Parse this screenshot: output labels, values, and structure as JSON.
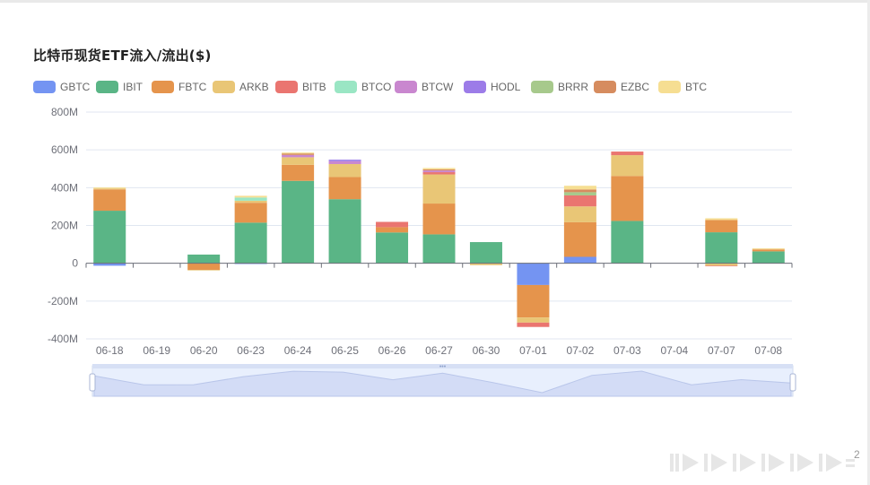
{
  "title": "比特币现货ETF流入/流出($)",
  "page_indicator": "2",
  "chart_data": {
    "type": "bar",
    "stacked": true,
    "title": "比特币现货ETF流入/流出($)",
    "xlabel": "",
    "ylabel": "",
    "ylim": [
      -400,
      800
    ],
    "yticks": [
      "800M",
      "600M",
      "400M",
      "200M",
      "0",
      "-200M",
      "-400M"
    ],
    "grid": true,
    "legend_position": "top-left",
    "categories": [
      "06-18",
      "06-19",
      "06-20",
      "06-23",
      "06-24",
      "06-25",
      "06-26",
      "06-27",
      "06-30",
      "07-01",
      "07-02",
      "07-03",
      "07-04",
      "07-07",
      "07-08"
    ],
    "series": [
      {
        "name": "GBTC",
        "color": "#7494f2",
        "values": [
          -13,
          0,
          0,
          -4,
          0,
          0,
          0,
          0,
          0,
          -115,
          34,
          0,
          0,
          0,
          0
        ]
      },
      {
        "name": "IBIT",
        "color": "#5ab586",
        "values": [
          278,
          0,
          46,
          215,
          436,
          339,
          163,
          153,
          112,
          0,
          0,
          224,
          0,
          164,
          63
        ]
      },
      {
        "name": "FBTC",
        "color": "#e5944c",
        "values": [
          113,
          0,
          -35,
          105,
          85,
          117,
          28,
          163,
          0,
          -172,
          183,
          238,
          0,
          65,
          10
        ]
      },
      {
        "name": "ARKB",
        "color": "#e9c676",
        "values": [
          5,
          0,
          -3,
          11,
          40,
          69,
          0,
          154,
          -10,
          -27,
          84,
          110,
          0,
          -13,
          3
        ]
      },
      {
        "name": "BITB",
        "color": "#ea7570",
        "values": [
          0,
          0,
          0,
          0,
          0,
          0,
          28,
          12,
          0,
          -23,
          58,
          19,
          0,
          -3,
          0
        ]
      },
      {
        "name": "BTCO",
        "color": "#9ae6c4",
        "values": [
          0,
          0,
          0,
          17,
          0,
          0,
          0,
          0,
          0,
          0,
          0,
          0,
          0,
          0,
          0
        ]
      },
      {
        "name": "BTCW",
        "color": "#c987cf",
        "values": [
          0,
          0,
          0,
          0,
          12,
          15,
          0,
          9,
          0,
          0,
          0,
          0,
          0,
          0,
          0
        ]
      },
      {
        "name": "HODL",
        "color": "#9c7ce8",
        "values": [
          0,
          0,
          0,
          0,
          0,
          8,
          0,
          0,
          0,
          0,
          0,
          0,
          0,
          0,
          0
        ]
      },
      {
        "name": "BRRR",
        "color": "#a7c98c",
        "values": [
          0,
          0,
          0,
          0,
          0,
          0,
          0,
          0,
          0,
          0,
          17,
          0,
          0,
          0,
          0
        ]
      },
      {
        "name": "EZBC",
        "color": "#d68c5f",
        "values": [
          0,
          0,
          0,
          0,
          8,
          0,
          0,
          6,
          0,
          0,
          14,
          0,
          0,
          0,
          0
        ]
      },
      {
        "name": "BTC",
        "color": "#f6de92",
        "values": [
          5,
          0,
          0,
          9,
          5,
          0,
          0,
          7,
          0,
          0,
          20,
          0,
          0,
          9,
          3
        ]
      }
    ]
  }
}
